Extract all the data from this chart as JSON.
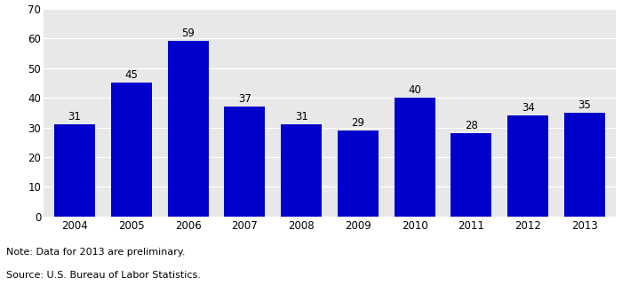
{
  "years": [
    "2004",
    "2005",
    "2006",
    "2007",
    "2008",
    "2009",
    "2010",
    "2011",
    "2012",
    "2013"
  ],
  "values": [
    31,
    45,
    59,
    37,
    31,
    29,
    40,
    28,
    34,
    35
  ],
  "bar_color": "#0000CC",
  "plot_bg_color": "#E8E8E8",
  "fig_bg_color": "#FFFFFF",
  "ylim": [
    0,
    70
  ],
  "yticks": [
    0,
    10,
    20,
    30,
    40,
    50,
    60,
    70
  ],
  "note_line1": "Note: Data for 2013 are preliminary.",
  "note_line2": "Source: U.S. Bureau of Labor Statistics.",
  "tick_fontsize": 8.5,
  "note_fontsize": 8.0,
  "bar_label_fontsize": 8.5,
  "bar_width": 0.72
}
